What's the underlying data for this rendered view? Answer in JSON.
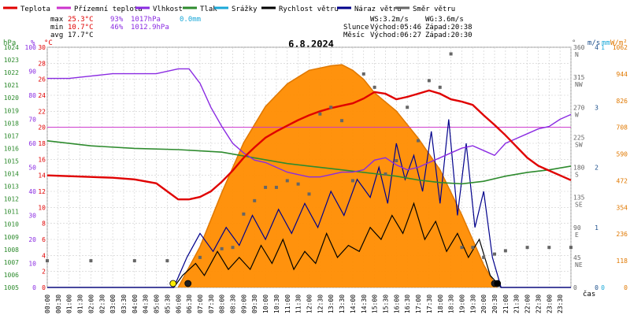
{
  "legend": [
    {
      "label": "Teplota",
      "color": "#e00000"
    },
    {
      "label": "Přízemní teplota",
      "color": "#cc33cc"
    },
    {
      "label": "Vlhkost",
      "color": "#8a2be2"
    },
    {
      "label": "Tlak",
      "color": "#2e8b2e"
    },
    {
      "label": "Srážky",
      "color": "#1aa8d8"
    },
    {
      "label": "Rychlost větru",
      "color": "#000000"
    },
    {
      "label": "Náraz větru",
      "color": "#00008b"
    },
    {
      "label": "Směr větru",
      "color": "#666666"
    }
  ],
  "stats": {
    "max": {
      "label": "max",
      "temp": "25.3°C",
      "hum": "93%",
      "press": "1017hPa",
      "rain": "0.0mm"
    },
    "min": {
      "label": "min",
      "temp": "10.7°C",
      "hum": "46%",
      "press": "1012.9hPa"
    },
    "avg": {
      "label": "avg",
      "temp": "17.7°C"
    }
  },
  "wind_info": {
    "ws": "WS:3.2m/s",
    "wg": "WG:3.6m/s"
  },
  "sun": {
    "label": "Slunce",
    "rise": "Východ:05:46",
    "set": "Západ:20:38"
  },
  "moon": {
    "label": "Měsíc",
    "rise": "Východ:06:27",
    "set": "Západ:20:30"
  },
  "colors": {
    "temp": "#e00000",
    "hum": "#8a2be2",
    "press": "#2e8b2e",
    "rain": "#1aa8d8",
    "wind": "#000000",
    "gust": "#00008b",
    "dir": "#666666",
    "solar_fill": "#ff8c00",
    "solar_curve": "#e07800",
    "grid": "#cccccc",
    "ref": "#cc33cc"
  },
  "chart_data": {
    "type": "line",
    "title": "6.8.2024",
    "xlabel": "čas",
    "x_ticks": [
      "00:00",
      "00:30",
      "01:00",
      "01:30",
      "02:00",
      "02:30",
      "03:00",
      "03:30",
      "04:00",
      "04:30",
      "05:00",
      "05:30",
      "06:00",
      "06:30",
      "07:00",
      "07:30",
      "08:00",
      "08:30",
      "09:00",
      "09:30",
      "10:00",
      "10:30",
      "11:00",
      "11:30",
      "12:00",
      "12:30",
      "13:00",
      "13:30",
      "14:00",
      "14:30",
      "15:00",
      "15:30",
      "16:00",
      "16:30",
      "17:00",
      "17:30",
      "18:00",
      "18:30",
      "19:00",
      "19:30",
      "20:00",
      "20:30",
      "21:00",
      "21:30",
      "22:00",
      "22:30",
      "23:00",
      "23:30"
    ],
    "axes": {
      "hpa": {
        "label": "hPa",
        "ticks": [
          "1024",
          "1023",
          "1022",
          "1021",
          "1020",
          "1019",
          "1018",
          "1017",
          "1016",
          "1015",
          "1014",
          "1013",
          "1012",
          "1011",
          "1010",
          "1009",
          "1008",
          "1007",
          "1006",
          "1005"
        ],
        "range": [
          1005,
          1024
        ]
      },
      "percent": {
        "label": "%",
        "ticks": [
          "100",
          "90",
          "80",
          "70",
          "60",
          "50",
          "40",
          "30",
          "20",
          "10",
          "0"
        ],
        "range": [
          0,
          100
        ]
      },
      "celsius": {
        "label": "°C",
        "ticks": [
          "30",
          "28",
          "26",
          "24",
          "22",
          "20",
          "18",
          "16",
          "14",
          "12",
          "10",
          "8",
          "6",
          "4",
          "2",
          "0"
        ],
        "range": [
          0,
          30
        ]
      },
      "direction": {
        "label": "°",
        "ticks": [
          {
            "deg": "360",
            "card": "N"
          },
          {
            "deg": "315",
            "card": "NW"
          },
          {
            "deg": "270",
            "card": "W"
          },
          {
            "deg": "225",
            "card": "SW"
          },
          {
            "deg": "180",
            "card": "S"
          },
          {
            "deg": "135",
            "card": "SE"
          },
          {
            "deg": "90",
            "card": "E"
          },
          {
            "deg": "45",
            "card": "NE"
          },
          {
            "deg": "0",
            "card": ""
          }
        ],
        "range": [
          0,
          360
        ]
      },
      "wind": {
        "label": "m/s",
        "ticks": [
          "4",
          "3",
          "2",
          "1",
          "0"
        ],
        "range": [
          0,
          4
        ]
      },
      "rain": {
        "label": "mm",
        "ticks": [
          "1",
          "0"
        ],
        "range": [
          0,
          1
        ]
      },
      "solar": {
        "label": "W/m²",
        "ticks": [
          "1062",
          "944",
          "826",
          "708",
          "590",
          "472",
          "354",
          "236",
          "118",
          "0"
        ],
        "range": [
          0,
          1062
        ]
      }
    },
    "reference_temp": 20,
    "series": [
      {
        "name": "Teplota",
        "unit": "°C",
        "x": [
          0,
          1,
          2,
          3,
          4,
          5,
          5.5,
          6,
          6.5,
          7,
          7.5,
          8,
          8.5,
          9,
          9.5,
          10,
          10.5,
          11,
          11.5,
          12,
          12.5,
          13,
          13.5,
          14,
          14.5,
          15,
          15.5,
          16,
          16.5,
          17,
          17.5,
          18,
          18.5,
          19,
          19.5,
          20,
          20.5,
          21,
          21.5,
          22,
          22.5,
          23,
          23.5,
          24
        ],
        "y": [
          14,
          13.9,
          13.8,
          13.7,
          13.5,
          13,
          12,
          11,
          11,
          11.3,
          12,
          13.2,
          14.6,
          16.2,
          17.5,
          18.7,
          19.5,
          20.2,
          20.9,
          21.5,
          22,
          22.4,
          22.7,
          23,
          23.6,
          24.4,
          24.2,
          23.5,
          23.8,
          24.2,
          24.6,
          24.2,
          23.5,
          23.2,
          22.8,
          21.5,
          20.3,
          19,
          17.6,
          16.2,
          15.2,
          14.6,
          14,
          13.4
        ]
      },
      {
        "name": "Vlhkost",
        "unit": "%",
        "x": [
          0,
          1,
          2,
          3,
          4,
          5,
          6,
          6.5,
          7,
          7.5,
          8,
          8.5,
          9,
          9.5,
          10,
          10.5,
          11,
          11.5,
          12,
          12.5,
          13,
          13.5,
          14,
          14.5,
          15,
          15.5,
          16,
          16.5,
          17,
          17.5,
          18,
          18.5,
          19,
          19.5,
          20,
          20.5,
          21,
          21.5,
          22,
          22.5,
          23,
          23.5,
          24
        ],
        "y": [
          87,
          87,
          88,
          89,
          89,
          89,
          91,
          91,
          85,
          75,
          67,
          60,
          56,
          53,
          52,
          50,
          48,
          47,
          46,
          46,
          47,
          48,
          48,
          49,
          53,
          54,
          51,
          49,
          50,
          52,
          54,
          56,
          58,
          59,
          57,
          55,
          60,
          62,
          64,
          66,
          67,
          70,
          72
        ]
      },
      {
        "name": "Tlak",
        "unit": "hPa",
        "x": [
          0,
          2,
          4,
          6,
          7,
          8,
          9,
          10,
          11,
          12,
          13,
          14,
          15,
          16,
          17,
          18,
          19,
          20,
          21,
          22,
          23,
          24
        ],
        "y": [
          1016.6,
          1016.2,
          1016,
          1015.9,
          1015.8,
          1015.7,
          1015.4,
          1015.1,
          1014.8,
          1014.6,
          1014.4,
          1014.2,
          1014,
          1013.8,
          1013.5,
          1013.3,
          1013.2,
          1013.4,
          1013.8,
          1014.1,
          1014.3,
          1014.6
        ]
      },
      {
        "name": "Rychlost větru",
        "unit": "m/s",
        "x": [
          0,
          5.8,
          6.2,
          6.8,
          7.2,
          7.8,
          8.3,
          8.8,
          9.3,
          9.8,
          10.3,
          10.8,
          11.3,
          11.8,
          12.3,
          12.8,
          13.3,
          13.8,
          14.3,
          14.8,
          15.3,
          15.8,
          16.3,
          16.8,
          17.3,
          17.8,
          18.3,
          18.8,
          19.3,
          19.8,
          20.3,
          20.8,
          24
        ],
        "y": [
          0,
          0,
          0.2,
          0.4,
          0.2,
          0.6,
          0.3,
          0.5,
          0.3,
          0.7,
          0.4,
          0.8,
          0.3,
          0.6,
          0.4,
          0.9,
          0.5,
          0.7,
          0.6,
          1.0,
          0.8,
          1.2,
          0.9,
          1.4,
          0.8,
          1.1,
          0.6,
          0.9,
          0.5,
          0.8,
          0.2,
          0,
          0
        ]
      },
      {
        "name": "Náraz větru",
        "unit": "m/s",
        "x": [
          0,
          5.8,
          6.4,
          7,
          7.6,
          8.2,
          8.8,
          9.4,
          10,
          10.6,
          11.2,
          11.8,
          12.4,
          13,
          13.6,
          14.2,
          14.8,
          15.2,
          15.6,
          16,
          16.4,
          16.8,
          17.2,
          17.6,
          18,
          18.4,
          18.8,
          19.2,
          19.6,
          20,
          20.4,
          20.8,
          24
        ],
        "y": [
          0,
          0,
          0.5,
          0.9,
          0.6,
          1.0,
          0.7,
          1.2,
          0.8,
          1.3,
          0.9,
          1.4,
          1.0,
          1.6,
          1.2,
          1.8,
          1.5,
          2.0,
          1.4,
          2.4,
          1.8,
          2.2,
          1.6,
          2.6,
          1.4,
          2.8,
          1.2,
          2.4,
          1.0,
          1.6,
          0.5,
          0,
          0
        ]
      },
      {
        "name": "Směr větru",
        "unit": "°",
        "x": [
          0,
          2,
          4,
          5.5,
          7,
          8,
          8.5,
          9,
          9.5,
          10,
          10.5,
          11,
          11.5,
          12,
          12.5,
          13,
          13.5,
          14,
          14.5,
          15,
          15.5,
          16,
          16.5,
          17,
          17.5,
          18,
          18.5,
          19,
          19.5,
          20,
          20.5,
          21,
          22,
          23,
          24
        ],
        "y": [
          40,
          40,
          40,
          40,
          45,
          58,
          60,
          110,
          130,
          150,
          150,
          160,
          155,
          140,
          260,
          270,
          250,
          160,
          320,
          300,
          170,
          190,
          270,
          220,
          310,
          300,
          350,
          60,
          60,
          45,
          50,
          55,
          60,
          60,
          60
        ]
      },
      {
        "name": "Solar",
        "unit": "W/m²",
        "x": [
          6,
          7,
          8,
          9,
          10,
          11,
          12,
          13,
          13.5,
          14,
          14.5,
          15,
          16,
          17,
          18,
          19,
          20,
          20.6
        ],
        "y": [
          0,
          180,
          420,
          640,
          800,
          900,
          960,
          980,
          985,
          960,
          920,
          860,
          780,
          660,
          520,
          320,
          100,
          0
        ]
      }
    ],
    "markers": [
      {
        "symbol": "sunrise",
        "time": "05:46"
      },
      {
        "symbol": "moonrise",
        "time": "06:27"
      },
      {
        "symbol": "moonset",
        "time": "20:30"
      },
      {
        "symbol": "sunset",
        "time": "20:38"
      }
    ]
  }
}
